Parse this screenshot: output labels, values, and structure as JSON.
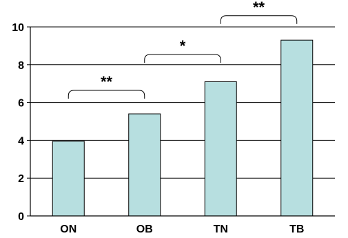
{
  "chart_data": {
    "type": "bar",
    "categories": [
      "ON",
      "OB",
      "TN",
      "TB"
    ],
    "values": [
      3.95,
      5.4,
      7.1,
      9.3
    ],
    "title": "",
    "xlabel": "",
    "ylabel": "",
    "ylim": [
      0,
      10
    ],
    "yticks": [
      0,
      2,
      4,
      6,
      8,
      10
    ],
    "grid": true,
    "legend": "none",
    "bar_color": "#b7dfe0",
    "annotations": [
      {
        "from": "ON",
        "to": "OB",
        "label": "**",
        "y": 6.35
      },
      {
        "from": "OB",
        "to": "TN",
        "label": "*",
        "y": 8.25
      },
      {
        "from": "TN",
        "to": "TB",
        "label": "**",
        "y": 10.3
      }
    ]
  }
}
